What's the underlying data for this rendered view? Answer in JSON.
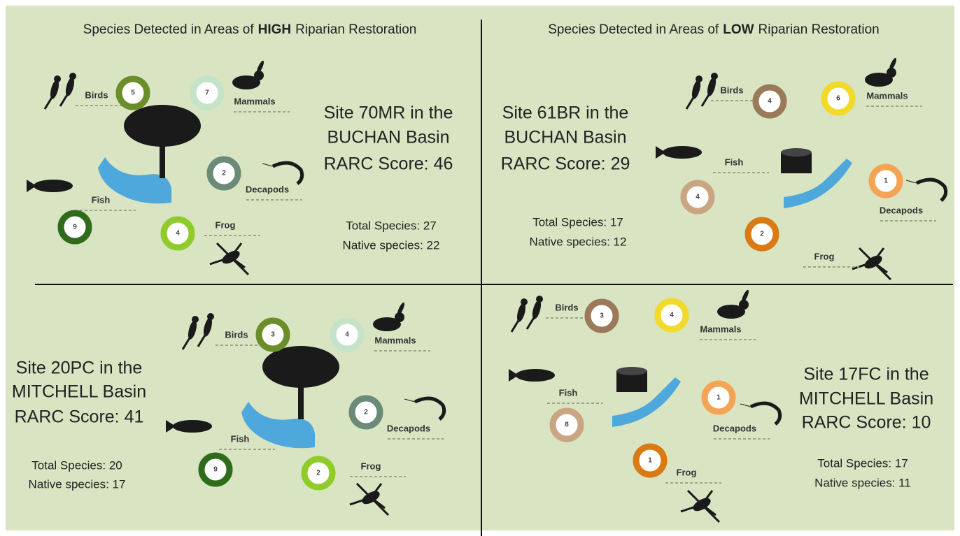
{
  "panels": [
    {
      "heading": {
        "before": "Species Detected in Areas of",
        "emphasis": "HIGH",
        "after": "Riparian Restoration"
      },
      "site": [
        "Site 70MR in the",
        "BUCHAN Basin",
        "RARC Score: 46"
      ],
      "totals": [
        "Total Species: 27",
        "Native species: 22"
      ],
      "groups": [
        {
          "label": "Birds",
          "count": 5
        },
        {
          "label": "Mammals",
          "count": 7
        },
        {
          "label": "Decapods",
          "count": 2
        },
        {
          "label": "Fish",
          "count": 9
        },
        {
          "label": "Frog",
          "count": 4
        }
      ]
    },
    {
      "heading": {
        "before": "Species Detected in Areas of",
        "emphasis": "LOW",
        "after": "Riparian Restoration"
      },
      "site": [
        "Site 61BR in the",
        "BUCHAN Basin",
        "RARC Score: 29"
      ],
      "totals": [
        "Total Species: 17",
        "Native species: 12"
      ],
      "groups": [
        {
          "label": "Birds",
          "count": 4
        },
        {
          "label": "Mammals",
          "count": 6
        },
        {
          "label": "Decapods",
          "count": 1
        },
        {
          "label": "Fish",
          "count": 4
        },
        {
          "label": "Frog",
          "count": 2
        }
      ]
    },
    {
      "site": [
        "Site 20PC in the",
        "MITCHELL Basin",
        "RARC Score: 41"
      ],
      "totals": [
        "Total Species: 20",
        "Native species: 17"
      ],
      "groups": [
        {
          "label": "Birds",
          "count": 3
        },
        {
          "label": "Mammals",
          "count": 4
        },
        {
          "label": "Decapods",
          "count": 2
        },
        {
          "label": "Fish",
          "count": 9
        },
        {
          "label": "Frog",
          "count": 2
        }
      ]
    },
    {
      "site": [
        "Site 17FC in the",
        "MITCHELL Basin",
        "RARC Score: 10"
      ],
      "totals": [
        "Total Species: 17",
        "Native species: 11"
      ],
      "groups": [
        {
          "label": "Birds",
          "count": 3
        },
        {
          "label": "Mammals",
          "count": 4
        },
        {
          "label": "Decapods",
          "count": 1
        },
        {
          "label": "Fish",
          "count": 8
        },
        {
          "label": "Frog",
          "count": 1
        }
      ]
    }
  ]
}
